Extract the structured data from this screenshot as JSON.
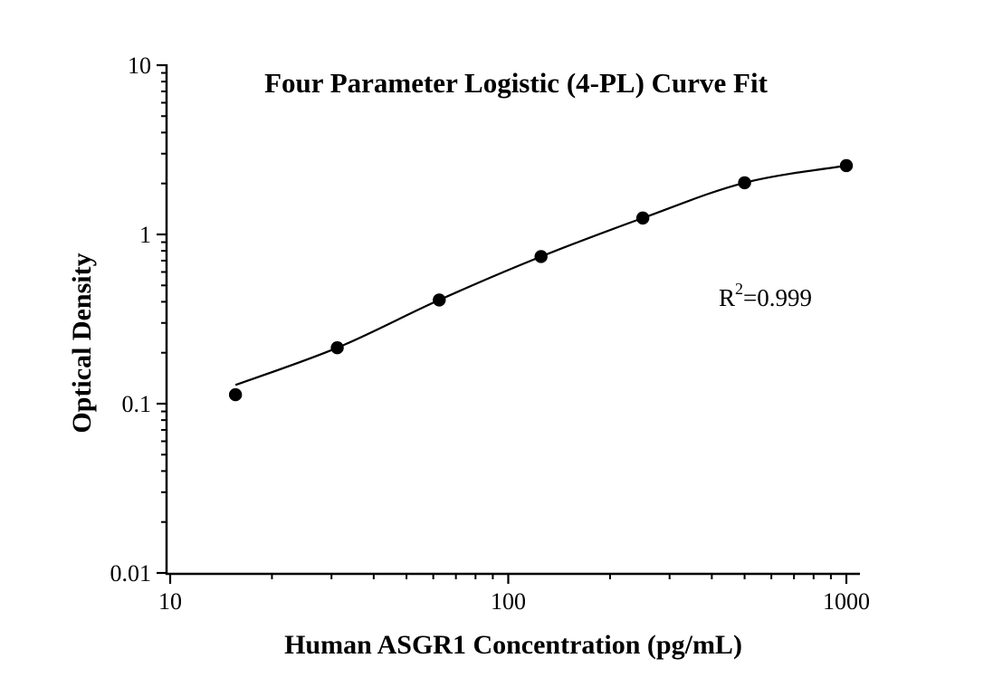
{
  "figure": {
    "background": "#ffffff",
    "ink_color": "#000000"
  },
  "annotation": {
    "r_base": "R",
    "r_sup": "2",
    "r_rest": "=0.999"
  },
  "chart_data": {
    "type": "scatter",
    "title": "Four Parameter Logistic (4-PL) Curve Fit",
    "xlabel": "Human ASGR1 Concentration (pg/mL)",
    "ylabel": "Optical Density",
    "x_scale": "log",
    "y_scale": "log",
    "xlim": [
      10,
      1100
    ],
    "ylim": [
      0.01,
      10
    ],
    "x_ticks": [
      10,
      100,
      1000
    ],
    "x_tick_labels": [
      "10",
      "100",
      "1000"
    ],
    "y_ticks": [
      0.01,
      0.1,
      1,
      10
    ],
    "y_tick_labels": [
      "0.01",
      "0.1",
      "1",
      "10"
    ],
    "grid": false,
    "legend": null,
    "series": [
      {
        "name": "standard-curve-points",
        "x": [
          15.6,
          31.2,
          62.5,
          125,
          250,
          500,
          1000
        ],
        "y": [
          0.113,
          0.214,
          0.41,
          0.74,
          1.25,
          2.02,
          2.55
        ],
        "marker": "filled-circle",
        "color": "#000000"
      }
    ],
    "fit_curve": {
      "name": "4-PL fit",
      "x": [
        15.6,
        31.2,
        62.5,
        125,
        250,
        500,
        1000
      ],
      "y": [
        0.129,
        0.214,
        0.41,
        0.74,
        1.25,
        2.02,
        2.55
      ],
      "color": "#000000"
    },
    "annotations": [
      {
        "text": "R²=0.999",
        "x": 420,
        "y": 0.38
      }
    ]
  }
}
